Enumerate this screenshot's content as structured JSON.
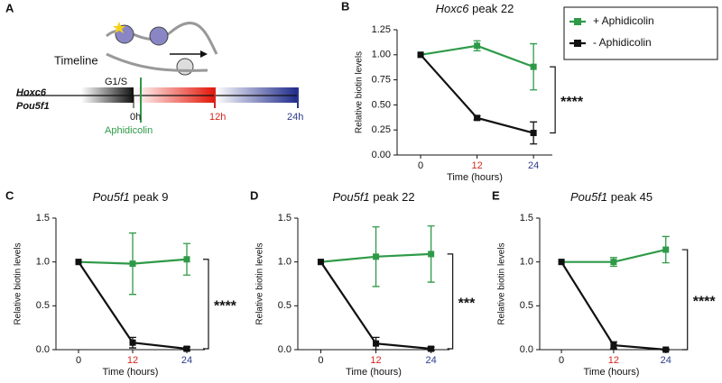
{
  "timeline": {
    "panel": "A",
    "title": "Timeline",
    "genes": [
      "Hoxc6",
      "Pou5f1"
    ],
    "phase": "G1/S",
    "times": [
      "0h",
      "12h",
      "24h"
    ],
    "drug": "Aphidicolin"
  },
  "chart_data": [
    {
      "type": "line",
      "panel": "B",
      "title_gene": "Hoxc6",
      "title": "peak 22",
      "xlabel": "Time (hours)",
      "ylabel": "Relative biotin levels",
      "x": [
        0,
        12,
        24
      ],
      "xlim": [
        -5,
        28
      ],
      "xticks": [
        0,
        12,
        24
      ],
      "xtick_colors": [
        "#111111",
        "#d7261e",
        "#2b3a8f"
      ],
      "ylim": [
        0,
        1.25
      ],
      "yticks": [
        {
          "value": 0,
          "label": "0.00"
        },
        0.25,
        {
          "value": 0.5,
          "label": "0.50"
        },
        0.75,
        {
          "value": 1,
          "label": "1.00"
        },
        1.25
      ],
      "legend": "right",
      "annotation": "****",
      "series": [
        {
          "name": "+ Aphidicolin",
          "color": "#2e9a48",
          "values": [
            1.0,
            1.09,
            0.88
          ],
          "errors": [
            0,
            0.05,
            0.23
          ]
        },
        {
          "name": "- Aphidicolin",
          "color": "#111111",
          "values": [
            1.0,
            0.37,
            0.22
          ],
          "errors": [
            0,
            0.02,
            0.11
          ]
        }
      ]
    },
    {
      "type": "line",
      "panel": "C",
      "title_gene": "Pou5f1",
      "title": "peak 9",
      "xlabel": "Time (hours)",
      "ylabel": "Relative biotin levels",
      "x": [
        0,
        12,
        24
      ],
      "xlim": [
        -5,
        28
      ],
      "xticks": [
        0,
        12,
        24
      ],
      "xtick_colors": [
        "#111111",
        "#d7261e",
        "#2b3a8f"
      ],
      "ylim": [
        0,
        1.5
      ],
      "yticks": [
        {
          "value": 0,
          "label": "0.0"
        },
        0.5,
        {
          "value": 1,
          "label": "1.0"
        },
        1.5
      ],
      "annotation": "****",
      "series": [
        {
          "color": "#2e9a48",
          "values": [
            1.0,
            0.98,
            1.03
          ],
          "errors": [
            0,
            0.35,
            0.18
          ]
        },
        {
          "color": "#111111",
          "values": [
            1.0,
            0.08,
            0.01
          ],
          "errors": [
            0,
            0.06,
            0.02
          ]
        }
      ]
    },
    {
      "type": "line",
      "panel": "D",
      "title_gene": "Pou5f1",
      "title": "peak 22",
      "xlabel": "Time (hours)",
      "ylabel": "Relative biotin levels",
      "x": [
        0,
        12,
        24
      ],
      "xlim": [
        -5,
        28
      ],
      "xticks": [
        0,
        12,
        24
      ],
      "xtick_colors": [
        "#111111",
        "#d7261e",
        "#2b3a8f"
      ],
      "ylim": [
        0,
        1.5
      ],
      "yticks": [
        {
          "value": 0,
          "label": "0.0"
        },
        0.5,
        {
          "value": 1,
          "label": "1.0"
        },
        1.5
      ],
      "annotation": "***",
      "series": [
        {
          "color": "#2e9a48",
          "values": [
            1.0,
            1.06,
            1.09
          ],
          "errors": [
            0,
            0.34,
            0.32
          ]
        },
        {
          "color": "#111111",
          "values": [
            1.0,
            0.07,
            0.01
          ],
          "errors": [
            0,
            0.07,
            0.02
          ]
        }
      ]
    },
    {
      "type": "line",
      "panel": "E",
      "title_gene": "Pou5f1",
      "title": "peak 45",
      "xlabel": "Time (hours)",
      "ylabel": "Relative biotin levels",
      "x": [
        0,
        12,
        24
      ],
      "xlim": [
        -5,
        28
      ],
      "xticks": [
        0,
        12,
        24
      ],
      "xtick_colors": [
        "#111111",
        "#d7261e",
        "#2b3a8f"
      ],
      "ylim": [
        0,
        1.5
      ],
      "yticks": [
        {
          "value": 0,
          "label": "0.0"
        },
        0.5,
        {
          "value": 1,
          "label": "1.0"
        },
        1.5
      ],
      "annotation": "****",
      "series": [
        {
          "color": "#2e9a48",
          "values": [
            1.0,
            1.0,
            1.14
          ],
          "errors": [
            0,
            0.05,
            0.15
          ]
        },
        {
          "color": "#111111",
          "values": [
            1.0,
            0.05,
            0.0
          ],
          "errors": [
            0,
            0.04,
            0.01
          ]
        }
      ]
    }
  ]
}
